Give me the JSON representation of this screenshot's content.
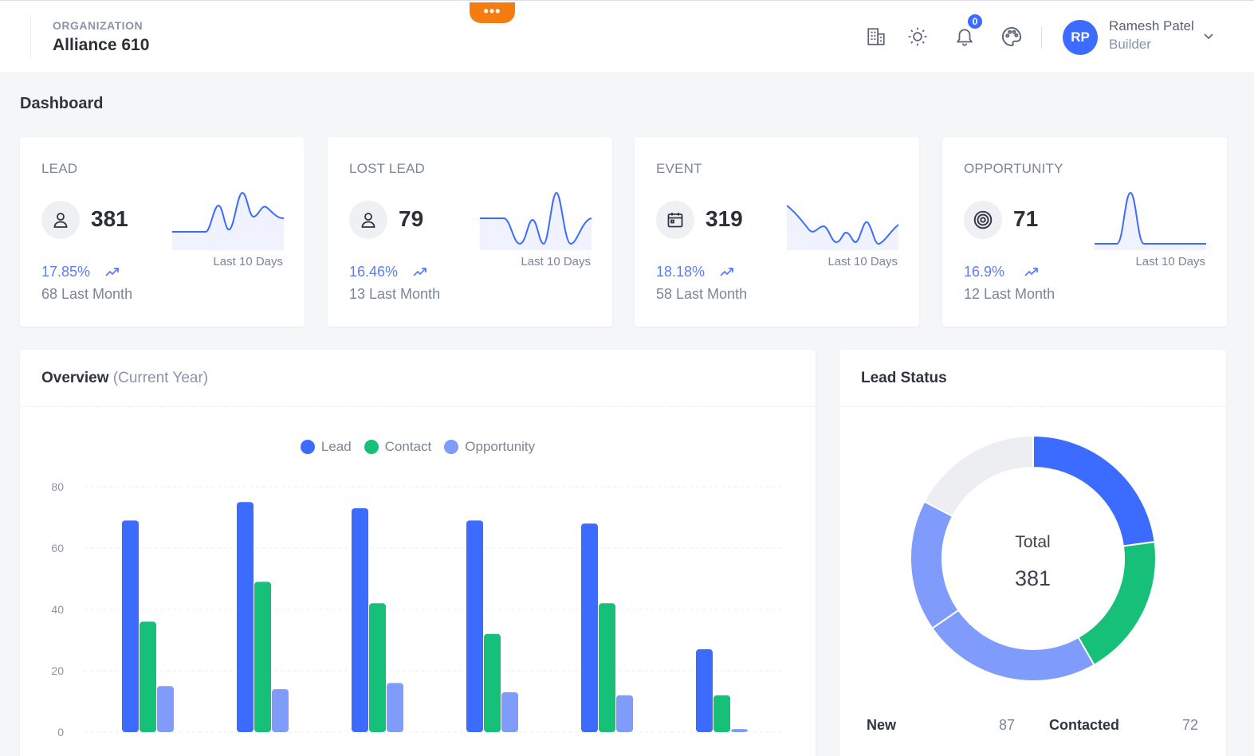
{
  "header": {
    "org_label": "ORGANIZATION",
    "org_name": "Alliance 610",
    "more_label": "•••",
    "notifications_count": "0",
    "user": {
      "initials": "RP",
      "name": "Ramesh Patel",
      "role": "Builder"
    },
    "icons": [
      "building-icon",
      "sun-icon",
      "bell-icon",
      "palette-icon",
      "chevron-down-icon"
    ]
  },
  "page": {
    "title": "Dashboard"
  },
  "stats": [
    {
      "title": "LEAD",
      "value": "381",
      "period": "Last 10 Days",
      "pct": "17.85%",
      "last_month": "68 Last Month",
      "icon": "user-icon",
      "trend": "up"
    },
    {
      "title": "LOST LEAD",
      "value": "79",
      "period": "Last 10 Days",
      "pct": "16.46%",
      "last_month": "13 Last Month",
      "icon": "user-icon",
      "trend": "up"
    },
    {
      "title": "EVENT",
      "value": "319",
      "period": "Last 10 Days",
      "pct": "18.18%",
      "last_month": "58 Last Month",
      "icon": "calendar-icon",
      "trend": "up"
    },
    {
      "title": "OPPORTUNITY",
      "value": "71",
      "period": "Last 10 Days",
      "pct": "16.9%",
      "last_month": "12 Last Month",
      "icon": "target-icon",
      "trend": "up"
    }
  ],
  "overview": {
    "title": "Overview",
    "subtitle": "(Current Year)"
  },
  "lead_status": {
    "title": "Lead Status",
    "total_label": "Total",
    "total_value": "381",
    "rows": [
      {
        "label": "New",
        "value": "87"
      },
      {
        "label": "Contacted",
        "value": "72"
      }
    ]
  },
  "colors": {
    "primary": "#3b6cff",
    "green": "#16c079",
    "light": "#7f9bfb",
    "gray": "#eceef2",
    "accent_orange": "#f57c10"
  },
  "chart_data": [
    {
      "type": "bar",
      "categories": [
        "",
        "",
        "",
        "",
        "",
        ""
      ],
      "series": [
        {
          "name": "Lead",
          "values": [
            69,
            75,
            73,
            69,
            68,
            27
          ],
          "color": "#3b6cff"
        },
        {
          "name": "Contact",
          "values": [
            36,
            49,
            42,
            32,
            42,
            12
          ],
          "color": "#16c079"
        },
        {
          "name": "Opportunity",
          "values": [
            15,
            14,
            16,
            13,
            12,
            1
          ],
          "color": "#7f9bfb"
        }
      ],
      "ylim": [
        0,
        80
      ],
      "yticks": [
        0,
        20,
        40,
        60,
        80
      ],
      "grid": true,
      "legend": "top-center"
    },
    {
      "type": "pie",
      "donut": true,
      "slices": [
        {
          "value": 87,
          "color": "#3b6cff"
        },
        {
          "value": 72,
          "color": "#16c079"
        },
        {
          "value": 90,
          "color": "#7f9bfb"
        },
        {
          "value": 66,
          "color": "#7f9bfb"
        },
        {
          "value": 66,
          "color": "#eceef2"
        }
      ]
    }
  ]
}
